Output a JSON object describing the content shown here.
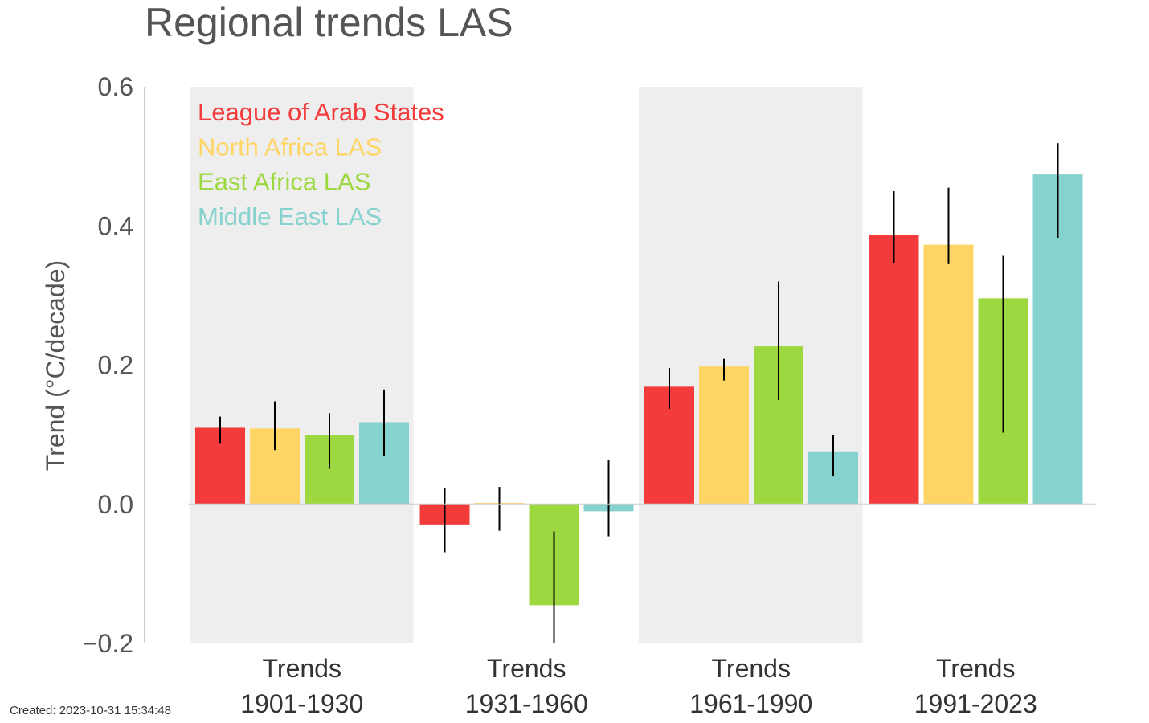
{
  "title": "Regional trends LAS",
  "created": "Created: 2023-10-31 15:34:48",
  "chart_data": {
    "type": "bar",
    "title": "Regional trends LAS",
    "xlabel": "",
    "ylabel": "Trend (°C/decade)",
    "ylim": [
      -0.2,
      0.6
    ],
    "yticks": [
      "−0.2",
      "0.0",
      "0.2",
      "0.4",
      "0.6"
    ],
    "ytick_values": [
      -0.2,
      0.0,
      0.2,
      0.4,
      0.6
    ],
    "grid": false,
    "legend_position": "top-left",
    "categories": [
      {
        "line1": "Trends",
        "line2": "1901-1930"
      },
      {
        "line1": "Trends",
        "line2": "1931-1960"
      },
      {
        "line1": "Trends",
        "line2": "1961-1990"
      },
      {
        "line1": "Trends",
        "line2": "1991-2023"
      }
    ],
    "shaded_categories": [
      0,
      2
    ],
    "series": [
      {
        "name": "League of Arab States",
        "color": "#f33b3b",
        "values": [
          0.11,
          -0.029,
          0.169,
          0.387
        ],
        "error_low": [
          0.087,
          -0.069,
          0.137,
          0.347
        ],
        "error_high": [
          0.126,
          0.024,
          0.196,
          0.45
        ]
      },
      {
        "name": "North Africa LAS",
        "color": "#fed564",
        "values": [
          0.109,
          0.002,
          0.198,
          0.373
        ],
        "error_low": [
          0.078,
          -0.038,
          0.178,
          0.345
        ],
        "error_high": [
          0.148,
          0.025,
          0.209,
          0.455
        ]
      },
      {
        "name": "East Africa LAS",
        "color": "#9ed840",
        "values": [
          0.1,
          -0.145,
          0.227,
          0.296
        ],
        "error_low": [
          0.051,
          -0.2,
          0.15,
          0.103
        ],
        "error_high": [
          0.131,
          -0.039,
          0.32,
          0.357
        ]
      },
      {
        "name": "Middle East LAS",
        "color": "#86d2cf",
        "values": [
          0.118,
          -0.01,
          0.075,
          0.474
        ],
        "error_low": [
          0.069,
          -0.046,
          0.04,
          0.383
        ],
        "error_high": [
          0.165,
          0.064,
          0.1,
          0.519
        ]
      }
    ]
  }
}
